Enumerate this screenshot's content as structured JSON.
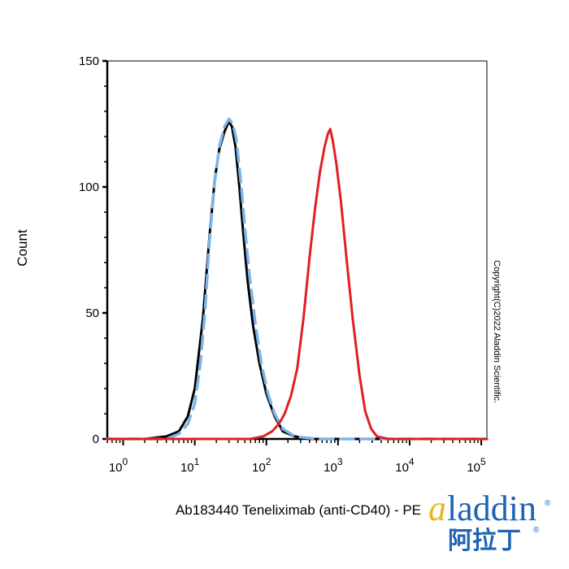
{
  "chart_data": {
    "type": "line",
    "xlabel": "Ab183440 Teneliximab (anti-CD40) - PE",
    "ylabel": "Count",
    "xscale": "log",
    "xlim": [
      0.6,
      120000
    ],
    "ylim": [
      0,
      150
    ],
    "x_ticks": [
      {
        "base": "10",
        "exp": "0",
        "value": 1
      },
      {
        "base": "10",
        "exp": "1",
        "value": 10
      },
      {
        "base": "10",
        "exp": "2",
        "value": 100
      },
      {
        "base": "10",
        "exp": "3",
        "value": 1000
      },
      {
        "base": "10",
        "exp": "4",
        "value": 10000
      },
      {
        "base": "10",
        "exp": "5",
        "value": 100000
      }
    ],
    "y_ticks": [
      {
        "label": "0",
        "value": 0
      },
      {
        "label": "50",
        "value": 50
      },
      {
        "label": "100",
        "value": 100
      },
      {
        "label": "150",
        "value": 150
      }
    ],
    "grid": false,
    "legend": "none",
    "series": [
      {
        "color": "#000000",
        "style": "solid",
        "points": [
          [
            0.6,
            0
          ],
          [
            2,
            0
          ],
          [
            4,
            1
          ],
          [
            6,
            3
          ],
          [
            8,
            9
          ],
          [
            10,
            20
          ],
          [
            13,
            48
          ],
          [
            16,
            80
          ],
          [
            19,
            103
          ],
          [
            22,
            115
          ],
          [
            26,
            122
          ],
          [
            30,
            126
          ],
          [
            33,
            124
          ],
          [
            37,
            116
          ],
          [
            42,
            100
          ],
          [
            48,
            80
          ],
          [
            55,
            62
          ],
          [
            65,
            45
          ],
          [
            80,
            30
          ],
          [
            100,
            18
          ],
          [
            130,
            9
          ],
          [
            170,
            3
          ],
          [
            250,
            1
          ],
          [
            400,
            0
          ],
          [
            120000,
            0
          ]
        ]
      },
      {
        "color": "#7fb4e8",
        "style": "dashed",
        "points": [
          [
            0.6,
            0
          ],
          [
            4,
            0
          ],
          [
            6,
            2
          ],
          [
            8,
            6
          ],
          [
            10,
            14
          ],
          [
            12,
            30
          ],
          [
            14,
            52
          ],
          [
            16,
            78
          ],
          [
            19,
            102
          ],
          [
            22,
            116
          ],
          [
            26,
            124
          ],
          [
            30,
            127
          ],
          [
            34,
            125
          ],
          [
            38,
            119
          ],
          [
            44,
            102
          ],
          [
            50,
            84
          ],
          [
            58,
            65
          ],
          [
            70,
            46
          ],
          [
            85,
            30
          ],
          [
            105,
            18
          ],
          [
            130,
            10
          ],
          [
            170,
            4
          ],
          [
            250,
            1
          ],
          [
            500,
            0
          ],
          [
            120000,
            0
          ]
        ]
      },
      {
        "color": "#e02020",
        "style": "solid",
        "points": [
          [
            0.6,
            0
          ],
          [
            60,
            0
          ],
          [
            90,
            1
          ],
          [
            120,
            3
          ],
          [
            150,
            6
          ],
          [
            180,
            10
          ],
          [
            220,
            17
          ],
          [
            270,
            28
          ],
          [
            330,
            48
          ],
          [
            400,
            72
          ],
          [
            480,
            92
          ],
          [
            560,
            106
          ],
          [
            650,
            116
          ],
          [
            720,
            121
          ],
          [
            780,
            123
          ],
          [
            850,
            118
          ],
          [
            950,
            109
          ],
          [
            1100,
            94
          ],
          [
            1300,
            73
          ],
          [
            1600,
            48
          ],
          [
            2000,
            25
          ],
          [
            2400,
            11
          ],
          [
            2900,
            4
          ],
          [
            3500,
            1
          ],
          [
            5000,
            0
          ],
          [
            120000,
            0
          ]
        ]
      }
    ]
  },
  "copyright": "Copyright(C)2022 Aladdin Scientific.",
  "logo": {
    "prefix": "a",
    "rest": "laddin",
    "chinese": "阿拉丁",
    "registered": "®"
  }
}
